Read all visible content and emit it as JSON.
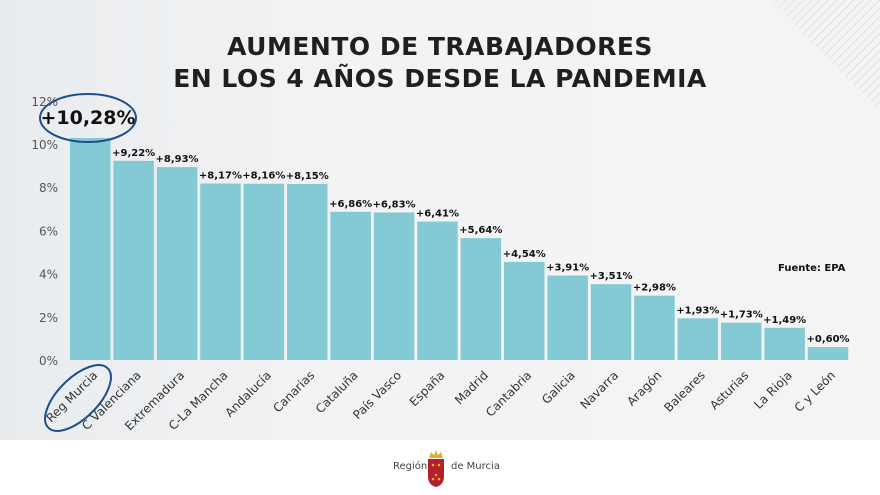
{
  "title_line1": "AUMENTO DE TRABAJADORES",
  "title_line2": "EN LOS 4 AÑOS DESDE LA PANDEMIA",
  "source": "Fuente: EPA",
  "footer": {
    "left": "Región",
    "right": "de Murcia"
  },
  "colors": {
    "bar": "#84cad4",
    "circle": "#1f4e8c",
    "logo_red": "#b3202b",
    "logo_gold": "#e0b030"
  },
  "chart_data": {
    "type": "bar",
    "title": "AUMENTO DE TRABAJADORES EN LOS 4 AÑOS DESDE LA PANDEMIA",
    "categories": [
      "Reg Murcia",
      "C Valenciana",
      "Extremadura",
      "C-La Mancha",
      "Andalucía",
      "Canarias",
      "Cataluña",
      "País Vasco",
      "España",
      "Madrid",
      "Cantabria",
      "Galicia",
      "Navarra",
      "Aragón",
      "Baleares",
      "Asturias",
      "La Rioja",
      "C y León"
    ],
    "values": [
      10.28,
      9.22,
      8.93,
      8.17,
      8.16,
      8.15,
      6.86,
      6.83,
      6.41,
      5.64,
      4.54,
      3.91,
      3.51,
      2.98,
      1.93,
      1.73,
      1.49,
      0.6
    ],
    "labels": [
      "+10,28%",
      "+9,22%",
      "+8,93%",
      "+8,17%",
      "+8,16%",
      "+8,15%",
      "+6,86%",
      "+6,83%",
      "+6,41%",
      "+5,64%",
      "+4,54%",
      "+3,91%",
      "+3,51%",
      "+2,98%",
      "+1,93%",
      "+1,73%",
      "+1,49%",
      "+0,60%"
    ],
    "yticks": [
      0,
      2,
      4,
      6,
      8,
      10,
      12
    ],
    "ytick_labels": [
      "0%",
      "2%",
      "4%",
      "6%",
      "8%",
      "10%",
      "12%"
    ],
    "ylim": [
      0,
      12
    ],
    "xlabel": "",
    "ylabel": "",
    "highlight": "Reg Murcia"
  }
}
